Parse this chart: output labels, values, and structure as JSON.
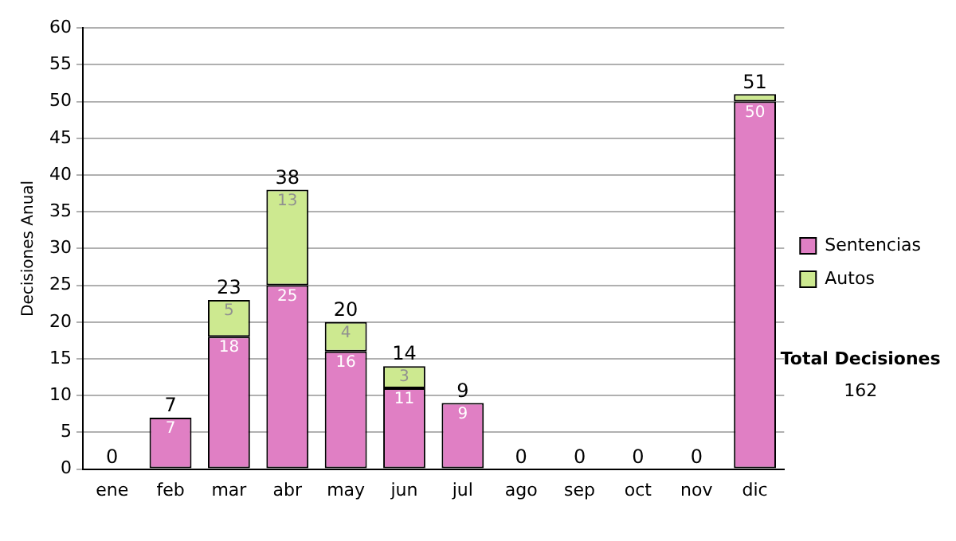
{
  "chart_data": {
    "type": "bar",
    "stacked": true,
    "ylabel": "Decisiones Anual",
    "categories": [
      "ene",
      "feb",
      "mar",
      "abr",
      "may",
      "jun",
      "jul",
      "ago",
      "sep",
      "oct",
      "nov",
      "dic"
    ],
    "series": [
      {
        "name": "Sentencias",
        "color": "#e07fc4",
        "values": [
          0,
          7,
          18,
          25,
          16,
          11,
          9,
          0,
          0,
          0,
          0,
          50
        ],
        "value_labels": [
          null,
          "7",
          "18",
          "25",
          "16",
          "11",
          "9",
          null,
          null,
          null,
          null,
          "50"
        ]
      },
      {
        "name": "Autos",
        "color": "#cde990",
        "values": [
          0,
          0,
          5,
          13,
          4,
          3,
          0,
          0,
          0,
          0,
          0,
          1
        ],
        "value_labels": [
          null,
          null,
          "5",
          "13",
          "4",
          "3",
          null,
          null,
          null,
          null,
          null,
          null
        ]
      }
    ],
    "totals": [
      "0",
      "7",
      "23",
      "38",
      "20",
      "14",
      "9",
      "0",
      "0",
      "0",
      "0",
      "51"
    ],
    "ylim": [
      0,
      60
    ],
    "yticks": [
      0,
      5,
      10,
      15,
      20,
      25,
      30,
      35,
      40,
      45,
      50,
      55,
      60
    ],
    "grid": "y",
    "legend": "right",
    "annotations": [
      "Total Decisiones",
      "162"
    ]
  }
}
